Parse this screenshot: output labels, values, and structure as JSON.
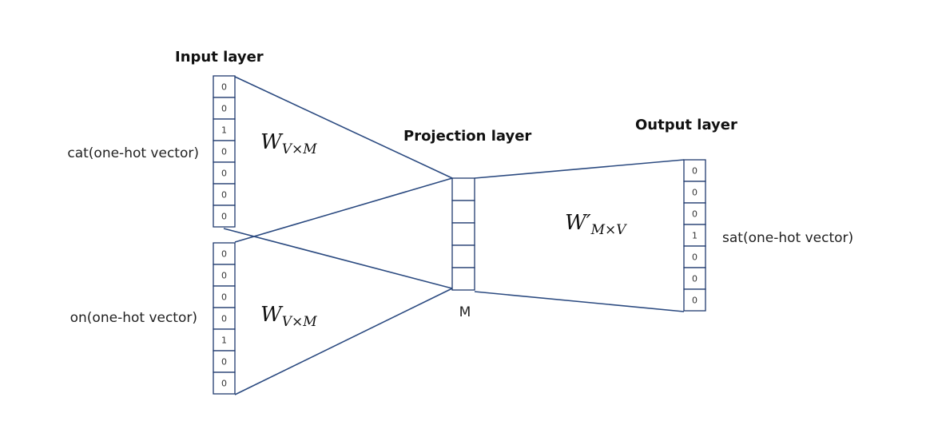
{
  "headings": {
    "input_layer": "Input layer",
    "projection_layer": "Projection layer",
    "output_layer": "Output layer"
  },
  "labels": {
    "cat": "cat(one-hot vector)",
    "on": "on(one-hot vector)",
    "sat": "sat(one-hot vector)",
    "projection_size": "M"
  },
  "weights": {
    "input_matrix": {
      "base": "W",
      "sub": "V×M"
    },
    "output_matrix": {
      "base": "W′",
      "sub": "M×V"
    }
  },
  "vectors": {
    "cat": [
      "0",
      "0",
      "1",
      "0",
      "0",
      "0",
      "0"
    ],
    "on": [
      "0",
      "0",
      "0",
      "0",
      "1",
      "0",
      "0"
    ],
    "sat": [
      "0",
      "0",
      "0",
      "1",
      "0",
      "0",
      "0"
    ],
    "projection_cells": 5
  },
  "colors": {
    "cell_border": "#1f3a6e",
    "connection": "#2b4a80"
  }
}
